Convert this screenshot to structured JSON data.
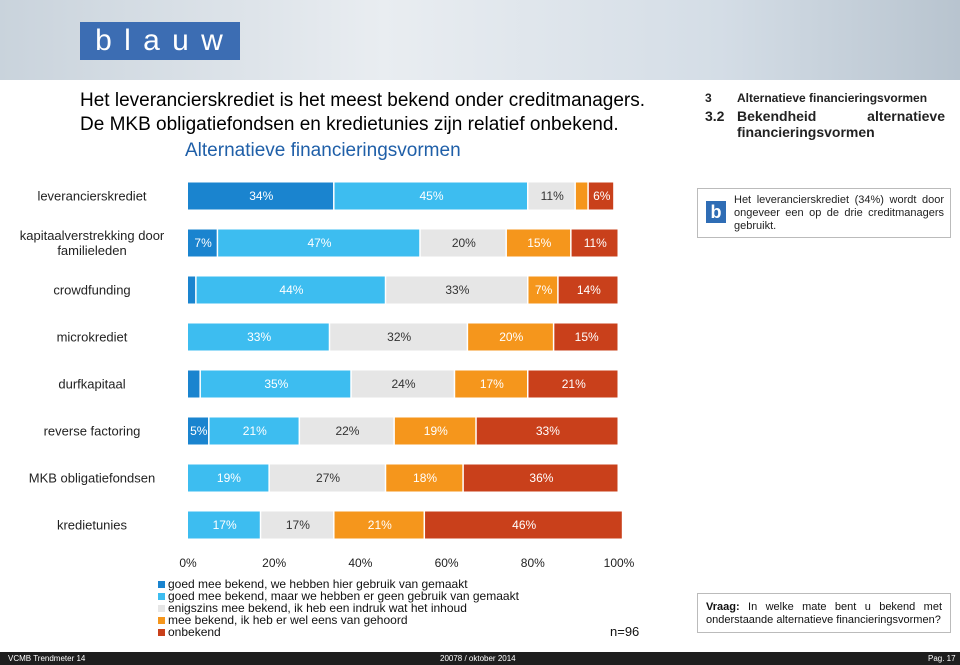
{
  "header": {
    "logo": "b l a u w",
    "headline": [
      "Het leverancierskrediet is het meest bekend onder creditmanagers.",
      "De MKB obligatiefondsen en kredietunies zijn relatief onbekend."
    ],
    "nav": {
      "section_number": "3",
      "section": "Alternatieve financieringsvormen",
      "subsection_number": "3.2",
      "subsection": "Bekendheid alternatieve financieringsvormen"
    }
  },
  "info_box": "Het leverancierskrediet (34%) wordt door ongeveer een op de drie creditmanagers gebruikt.",
  "question": {
    "label": "Vraag:",
    "text": "In welke mate bent u bekend met onderstaande alternatieve financieringsvormen?"
  },
  "sample": "n=96",
  "footer": {
    "left": "VCMB Trendmeter 14",
    "center": "20078 / oktober 2014",
    "right": "Pag. 17"
  },
  "chart_data": {
    "type": "stacked_barh",
    "title": "Alternatieve financieringsvormen",
    "categories": [
      "leverancierskrediet",
      "kapitaalverstrekking door familieleden",
      "crowdfunding",
      "microkrediet",
      "durfkapitaal",
      "reverse factoring",
      "MKB obligatiefondsen",
      "kredietunies"
    ],
    "series": [
      {
        "name": "goed mee bekend, we hebben hier gebruik van gemaakt",
        "color": "#1a84cf",
        "values": [
          34,
          7,
          2,
          0,
          3,
          5,
          0,
          0
        ],
        "value_labels": [
          "34%",
          "7%",
          null,
          null,
          null,
          "5%",
          null,
          null
        ]
      },
      {
        "name": "goed mee bekend, maar we hebben er geen gebruik van gemaakt",
        "color": "#3dbdf0",
        "values": [
          45,
          47,
          44,
          33,
          35,
          21,
          19,
          17
        ],
        "value_labels": [
          "45%",
          "47%",
          "44%",
          "33%",
          "35%",
          "21%",
          "19%",
          "17%"
        ]
      },
      {
        "name": "enigszins mee bekend, ik heb een indruk wat het inhoud",
        "color": "#e6e6e6",
        "values": [
          11,
          20,
          33,
          32,
          24,
          22,
          27,
          17
        ],
        "value_labels": [
          "11%",
          "20%",
          "33%",
          "32%",
          "24%",
          "22%",
          "27%",
          "17%"
        ]
      },
      {
        "name": "mee bekend, ik heb er wel eens van gehoord",
        "color": "#f5961c",
        "values": [
          3,
          15,
          7,
          20,
          17,
          19,
          18,
          21
        ],
        "value_labels": [
          null,
          "15%",
          "7%",
          "20%",
          "17%",
          "19%",
          "18%",
          "21%"
        ]
      },
      {
        "name": "onbekend",
        "color": "#c9401b",
        "values": [
          6,
          11,
          14,
          15,
          21,
          33,
          36,
          46
        ],
        "value_labels": [
          "6%",
          "11%",
          "14%",
          "15%",
          "21%",
          "33%",
          "36%",
          "46%"
        ]
      }
    ],
    "xlim": [
      0,
      100
    ],
    "xticks": [
      {
        "value": 0,
        "label": "0%"
      },
      {
        "value": 20,
        "label": "20%"
      },
      {
        "value": 40,
        "label": "40%"
      },
      {
        "value": 60,
        "label": "60%"
      },
      {
        "value": 80,
        "label": "80%"
      },
      {
        "value": 100,
        "label": "100%"
      }
    ]
  }
}
